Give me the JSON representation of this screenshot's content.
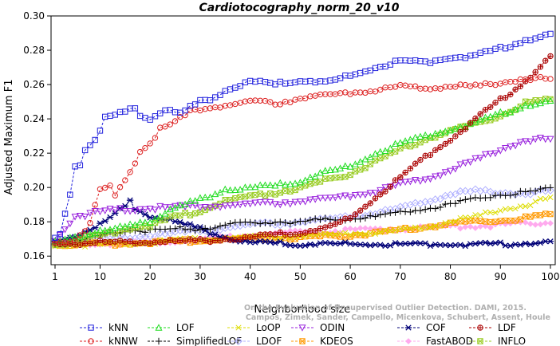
{
  "chart_data": {
    "type": "line",
    "title": "Cardiotocography_norm_20_v10",
    "xlabel": "Neighborhood size",
    "ylabel": "Adjusted Maximum F1",
    "xlim": [
      1,
      100
    ],
    "ylim": [
      0.155,
      0.3
    ],
    "x_ticks": [
      1,
      10,
      20,
      30,
      40,
      50,
      60,
      70,
      80,
      90,
      100
    ],
    "y_ticks": [
      0.16,
      0.18,
      0.2,
      0.22,
      0.24,
      0.26,
      0.28,
      0.3
    ],
    "x_tick_labels": [
      "1",
      "10",
      "20",
      "30",
      "40",
      "50",
      "60",
      "70",
      "80",
      "90",
      "100"
    ],
    "y_tick_labels": [
      "0.16",
      "0.18",
      "0.20",
      "0.22",
      "0.24",
      "0.26",
      "0.28",
      "0.30"
    ],
    "grid": false,
    "legend_position": "bottom",
    "credit": [
      "Campos, Zimek, Sander, Campello, Micenkova, Schubert, Assent, Houle",
      "On the Evaluation of Unsupervised Outlier Detection. DAMI, 2015."
    ],
    "series": [
      {
        "name": "kNN",
        "color": "#2222dd",
        "marker": "square",
        "keypoints": [
          [
            1,
            0.17
          ],
          [
            2,
            0.173
          ],
          [
            3,
            0.185
          ],
          [
            4,
            0.196
          ],
          [
            5,
            0.213
          ],
          [
            6,
            0.214
          ],
          [
            7,
            0.222
          ],
          [
            9,
            0.228
          ],
          [
            10,
            0.232
          ],
          [
            11,
            0.241
          ],
          [
            13,
            0.242
          ],
          [
            15,
            0.244
          ],
          [
            17,
            0.247
          ],
          [
            18,
            0.242
          ],
          [
            20,
            0.24
          ],
          [
            23,
            0.245
          ],
          [
            26,
            0.243
          ],
          [
            30,
            0.25
          ],
          [
            33,
            0.253
          ],
          [
            36,
            0.258
          ],
          [
            40,
            0.262
          ],
          [
            45,
            0.26
          ],
          [
            50,
            0.263
          ],
          [
            55,
            0.261
          ],
          [
            60,
            0.265
          ],
          [
            65,
            0.27
          ],
          [
            70,
            0.274
          ],
          [
            75,
            0.273
          ],
          [
            80,
            0.276
          ],
          [
            85,
            0.277
          ],
          [
            90,
            0.281
          ],
          [
            95,
            0.286
          ],
          [
            100,
            0.289
          ]
        ]
      },
      {
        "name": "kNNW",
        "color": "#dd2222",
        "marker": "circle",
        "keypoints": [
          [
            1,
            0.168
          ],
          [
            5,
            0.169
          ],
          [
            8,
            0.179
          ],
          [
            10,
            0.199
          ],
          [
            12,
            0.2
          ],
          [
            13,
            0.195
          ],
          [
            14,
            0.199
          ],
          [
            15,
            0.205
          ],
          [
            16,
            0.21
          ],
          [
            17,
            0.215
          ],
          [
            18,
            0.221
          ],
          [
            20,
            0.226
          ],
          [
            22,
            0.234
          ],
          [
            25,
            0.238
          ],
          [
            28,
            0.244
          ],
          [
            32,
            0.247
          ],
          [
            36,
            0.248
          ],
          [
            40,
            0.25
          ],
          [
            45,
            0.249
          ],
          [
            50,
            0.252
          ],
          [
            55,
            0.254
          ],
          [
            60,
            0.255
          ],
          [
            65,
            0.257
          ],
          [
            70,
            0.259
          ],
          [
            75,
            0.258
          ],
          [
            80,
            0.259
          ],
          [
            85,
            0.259
          ],
          [
            90,
            0.261
          ],
          [
            95,
            0.264
          ],
          [
            100,
            0.263
          ]
        ]
      },
      {
        "name": "LOF",
        "color": "#22dd22",
        "marker": "triangle-up",
        "keypoints": [
          [
            1,
            0.168
          ],
          [
            5,
            0.172
          ],
          [
            10,
            0.174
          ],
          [
            15,
            0.177
          ],
          [
            18,
            0.18
          ],
          [
            20,
            0.18
          ],
          [
            25,
            0.188
          ],
          [
            30,
            0.193
          ],
          [
            35,
            0.199
          ],
          [
            40,
            0.2
          ],
          [
            45,
            0.201
          ],
          [
            50,
            0.204
          ],
          [
            55,
            0.209
          ],
          [
            60,
            0.212
          ],
          [
            65,
            0.22
          ],
          [
            70,
            0.226
          ],
          [
            75,
            0.23
          ],
          [
            80,
            0.234
          ],
          [
            85,
            0.238
          ],
          [
            90,
            0.243
          ],
          [
            95,
            0.248
          ],
          [
            100,
            0.25
          ]
        ]
      },
      {
        "name": "SimplifiedLOF",
        "color": "#000000",
        "marker": "plus",
        "keypoints": [
          [
            1,
            0.167
          ],
          [
            5,
            0.168
          ],
          [
            10,
            0.172
          ],
          [
            15,
            0.175
          ],
          [
            20,
            0.175
          ],
          [
            25,
            0.176
          ],
          [
            30,
            0.176
          ],
          [
            35,
            0.178
          ],
          [
            40,
            0.179
          ],
          [
            45,
            0.18
          ],
          [
            50,
            0.18
          ],
          [
            55,
            0.181
          ],
          [
            60,
            0.182
          ],
          [
            65,
            0.183
          ],
          [
            70,
            0.185
          ],
          [
            75,
            0.188
          ],
          [
            80,
            0.19
          ],
          [
            85,
            0.193
          ],
          [
            90,
            0.196
          ],
          [
            95,
            0.197
          ],
          [
            100,
            0.199
          ]
        ]
      },
      {
        "name": "LoOP",
        "color": "#dddd00",
        "marker": "cross",
        "keypoints": [
          [
            1,
            0.166
          ],
          [
            10,
            0.167
          ],
          [
            20,
            0.168
          ],
          [
            30,
            0.17
          ],
          [
            40,
            0.171
          ],
          [
            50,
            0.172
          ],
          [
            60,
            0.173
          ],
          [
            70,
            0.175
          ],
          [
            75,
            0.177
          ],
          [
            80,
            0.18
          ],
          [
            85,
            0.183
          ],
          [
            90,
            0.187
          ],
          [
            95,
            0.19
          ],
          [
            100,
            0.194
          ]
        ]
      },
      {
        "name": "LDOF",
        "color": "#b0b0ff",
        "marker": "diamond",
        "keypoints": [
          [
            1,
            0.168
          ],
          [
            10,
            0.17
          ],
          [
            20,
            0.172
          ],
          [
            30,
            0.175
          ],
          [
            40,
            0.178
          ],
          [
            50,
            0.18
          ],
          [
            60,
            0.183
          ],
          [
            70,
            0.188
          ],
          [
            75,
            0.192
          ],
          [
            80,
            0.196
          ],
          [
            85,
            0.198
          ],
          [
            90,
            0.197
          ],
          [
            95,
            0.197
          ],
          [
            100,
            0.198
          ]
        ]
      },
      {
        "name": "ODIN",
        "color": "#9922dd",
        "marker": "triangle-down",
        "keypoints": [
          [
            1,
            0.169
          ],
          [
            5,
            0.183
          ],
          [
            10,
            0.186
          ],
          [
            20,
            0.188
          ],
          [
            30,
            0.189
          ],
          [
            40,
            0.19
          ],
          [
            50,
            0.192
          ],
          [
            60,
            0.195
          ],
          [
            65,
            0.198
          ],
          [
            70,
            0.202
          ],
          [
            75,
            0.205
          ],
          [
            80,
            0.21
          ],
          [
            85,
            0.216
          ],
          [
            90,
            0.222
          ],
          [
            95,
            0.228
          ],
          [
            100,
            0.228
          ]
        ]
      },
      {
        "name": "KDEOS",
        "color": "#ff9900",
        "marker": "square-x",
        "keypoints": [
          [
            1,
            0.167
          ],
          [
            10,
            0.167
          ],
          [
            20,
            0.168
          ],
          [
            30,
            0.169
          ],
          [
            40,
            0.17
          ],
          [
            50,
            0.171
          ],
          [
            60,
            0.172
          ],
          [
            70,
            0.175
          ],
          [
            75,
            0.177
          ],
          [
            80,
            0.179
          ],
          [
            85,
            0.18
          ],
          [
            90,
            0.181
          ],
          [
            95,
            0.182
          ],
          [
            100,
            0.184
          ]
        ]
      },
      {
        "name": "COF",
        "color": "#000077",
        "marker": "asterisk",
        "keypoints": [
          [
            1,
            0.168
          ],
          [
            5,
            0.172
          ],
          [
            10,
            0.178
          ],
          [
            15,
            0.189
          ],
          [
            16,
            0.192
          ],
          [
            17,
            0.188
          ],
          [
            20,
            0.183
          ],
          [
            25,
            0.18
          ],
          [
            30,
            0.176
          ],
          [
            35,
            0.171
          ],
          [
            40,
            0.168
          ],
          [
            50,
            0.167
          ],
          [
            60,
            0.167
          ],
          [
            70,
            0.167
          ],
          [
            80,
            0.167
          ],
          [
            90,
            0.167
          ],
          [
            100,
            0.168
          ]
        ]
      },
      {
        "name": "FastABOD",
        "color": "#ffaaee",
        "marker": "diamond-filled",
        "keypoints": [
          [
            1,
            0.166
          ],
          [
            10,
            0.167
          ],
          [
            20,
            0.168
          ],
          [
            30,
            0.17
          ],
          [
            40,
            0.172
          ],
          [
            50,
            0.174
          ],
          [
            60,
            0.175
          ],
          [
            70,
            0.176
          ],
          [
            80,
            0.177
          ],
          [
            90,
            0.178
          ],
          [
            100,
            0.18
          ]
        ]
      },
      {
        "name": "LDF",
        "color": "#aa0000",
        "marker": "circle-plus",
        "keypoints": [
          [
            1,
            0.167
          ],
          [
            10,
            0.168
          ],
          [
            20,
            0.168
          ],
          [
            30,
            0.169
          ],
          [
            40,
            0.171
          ],
          [
            50,
            0.174
          ],
          [
            55,
            0.176
          ],
          [
            60,
            0.182
          ],
          [
            65,
            0.194
          ],
          [
            70,
            0.206
          ],
          [
            75,
            0.218
          ],
          [
            80,
            0.228
          ],
          [
            85,
            0.24
          ],
          [
            90,
            0.251
          ],
          [
            95,
            0.262
          ],
          [
            100,
            0.276
          ]
        ]
      },
      {
        "name": "INFLO",
        "color": "#99cc22",
        "marker": "square-x-green",
        "keypoints": [
          [
            1,
            0.167
          ],
          [
            5,
            0.169
          ],
          [
            10,
            0.172
          ],
          [
            15,
            0.176
          ],
          [
            20,
            0.178
          ],
          [
            25,
            0.183
          ],
          [
            30,
            0.186
          ],
          [
            35,
            0.192
          ],
          [
            40,
            0.195
          ],
          [
            45,
            0.197
          ],
          [
            50,
            0.2
          ],
          [
            55,
            0.204
          ],
          [
            60,
            0.208
          ],
          [
            65,
            0.215
          ],
          [
            70,
            0.222
          ],
          [
            75,
            0.228
          ],
          [
            80,
            0.233
          ],
          [
            85,
            0.237
          ],
          [
            90,
            0.242
          ],
          [
            95,
            0.249
          ],
          [
            100,
            0.251
          ]
        ]
      }
    ]
  }
}
